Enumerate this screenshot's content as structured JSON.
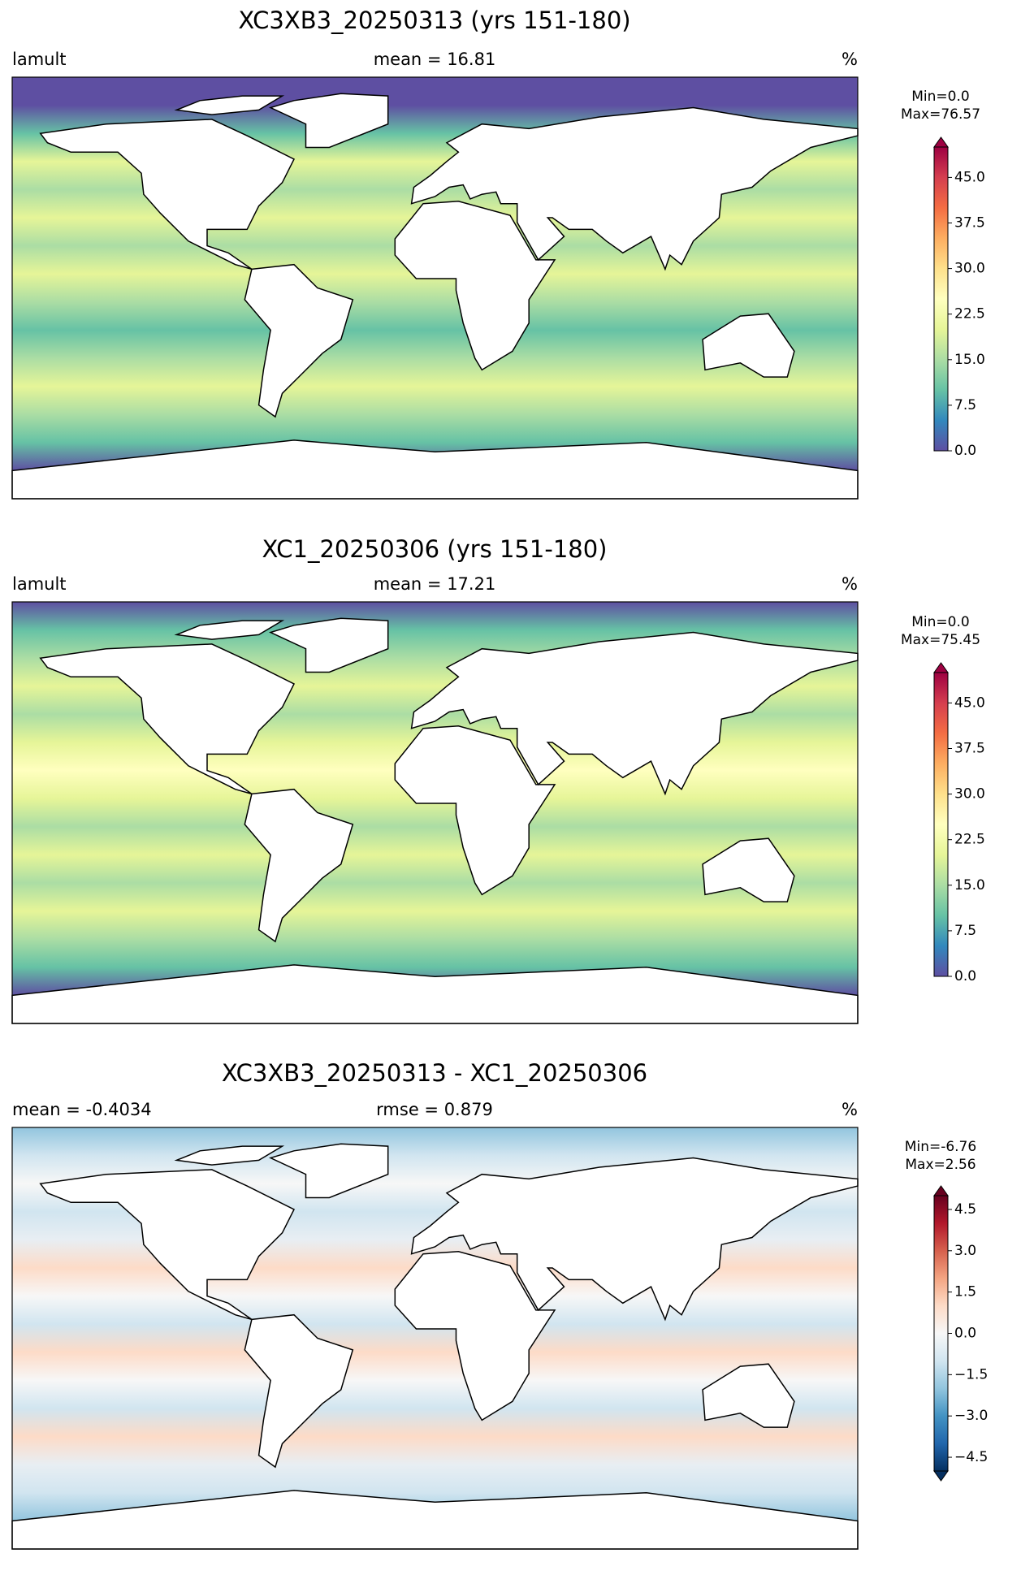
{
  "chart_data": [
    {
      "type": "map",
      "title": "XC3XB3_20250313 (yrs 151-180)",
      "left_label": "lamult",
      "center_label": "mean = 16.81",
      "right_label": "%",
      "field_colors": [
        "#5e4fa2",
        "#5e4fa2",
        "#66c2a5",
        "#e6f598",
        "#abdda4",
        "#e6f598",
        "#abdda4",
        "#e6f598",
        "#abdda4",
        "#66c2a5",
        "#abdda4",
        "#e6f598",
        "#abdda4",
        "#66c2a5",
        "#5e4fa2",
        "#5e4fa2"
      ],
      "colorbar": {
        "min_label": "Min=0.0",
        "max_label": "Max=76.57",
        "lim": [
          0,
          50
        ],
        "extend": "max",
        "colors": [
          "#5e4fa2",
          "#3288bd",
          "#66c2a5",
          "#abdda4",
          "#e6f598",
          "#ffffbf",
          "#fee08b",
          "#fdae61",
          "#f46d43",
          "#d53e4f",
          "#9e0142"
        ],
        "ticks": [
          {
            "value": 0,
            "label": "0.0"
          },
          7.5,
          {
            "value": 15,
            "label": "15.0"
          },
          22.5,
          {
            "value": 30,
            "label": "30.0"
          },
          37.5,
          {
            "value": 45,
            "label": "45.0"
          }
        ]
      }
    },
    {
      "type": "map",
      "title": "XC1_20250306 (yrs 151-180)",
      "left_label": "lamult",
      "center_label": "mean = 17.21",
      "right_label": "%",
      "field_colors": [
        "#5e4fa2",
        "#66c2a5",
        "#abdda4",
        "#e6f598",
        "#abdda4",
        "#e6f598",
        "#ffffbf",
        "#e6f598",
        "#abdda4",
        "#e6f598",
        "#abdda4",
        "#e6f598",
        "#abdda4",
        "#66c2a5",
        "#5e4fa2",
        "#5e4fa2"
      ],
      "colorbar": {
        "min_label": "Min=0.0",
        "max_label": "Max=75.45",
        "lim": [
          0,
          50
        ],
        "extend": "max",
        "colors": [
          "#5e4fa2",
          "#3288bd",
          "#66c2a5",
          "#abdda4",
          "#e6f598",
          "#ffffbf",
          "#fee08b",
          "#fdae61",
          "#f46d43",
          "#d53e4f",
          "#9e0142"
        ],
        "ticks": [
          {
            "value": 0,
            "label": "0.0"
          },
          7.5,
          {
            "value": 15,
            "label": "15.0"
          },
          22.5,
          {
            "value": 30,
            "label": "30.0"
          },
          37.5,
          {
            "value": 45,
            "label": "45.0"
          }
        ]
      }
    },
    {
      "type": "map",
      "title": "XC3XB3_20250313 - XC1_20250306",
      "left_label": "mean = -0.4034",
      "center_label": "rmse = 0.879",
      "right_label": "%",
      "field_colors": [
        "#92c5de",
        "#d1e5f0",
        "#f7f7f7",
        "#d1e5f0",
        "#e8eef3",
        "#fddbc7",
        "#f7f7f7",
        "#d1e5f0",
        "#fddbc7",
        "#f7f7f7",
        "#d1e5f0",
        "#fddbc7",
        "#e8eef3",
        "#d1e5f0",
        "#92c5de",
        "#f7f7f7"
      ],
      "colorbar": {
        "min_label": "Min=-6.76",
        "max_label": "Max=2.56",
        "lim": [
          -5,
          5
        ],
        "extend": "both",
        "colors": [
          "#053061",
          "#2166ac",
          "#4393c3",
          "#92c5de",
          "#d1e5f0",
          "#f7f7f7",
          "#fddbc7",
          "#f4a582",
          "#d6604d",
          "#b2182b",
          "#67001f"
        ],
        "ticks": [
          {
            "value": -4.5,
            "label": "−4.5"
          },
          {
            "value": -3,
            "label": "−3.0"
          },
          {
            "value": -1.5,
            "label": "−1.5"
          },
          {
            "value": 0,
            "label": "0.0"
          },
          1.5,
          {
            "value": 3,
            "label": "3.0"
          },
          4.5
        ]
      }
    }
  ]
}
